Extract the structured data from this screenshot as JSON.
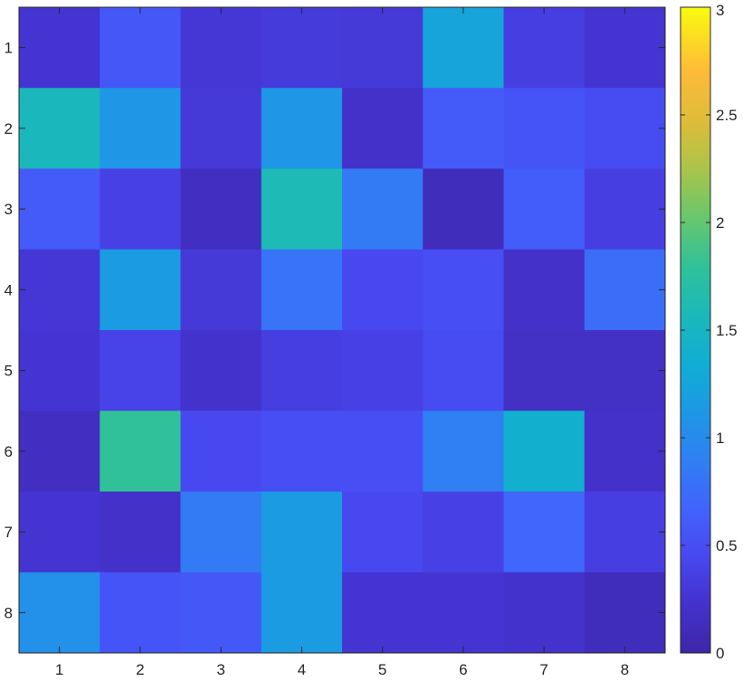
{
  "chart_data": {
    "type": "heatmap",
    "x_categories": [
      "1",
      "2",
      "3",
      "4",
      "5",
      "6",
      "7",
      "8"
    ],
    "y_categories": [
      "1",
      "2",
      "3",
      "4",
      "5",
      "6",
      "7",
      "8"
    ],
    "values": [
      [
        0.25,
        0.58,
        0.28,
        0.31,
        0.3,
        1.25,
        0.35,
        0.25
      ],
      [
        1.55,
        1.1,
        0.3,
        1.1,
        0.2,
        0.6,
        0.55,
        0.48
      ],
      [
        0.6,
        0.38,
        0.15,
        1.6,
        0.85,
        0.12,
        0.62,
        0.35
      ],
      [
        0.28,
        1.15,
        0.3,
        0.8,
        0.45,
        0.5,
        0.2,
        0.75
      ],
      [
        0.25,
        0.4,
        0.22,
        0.35,
        0.38,
        0.48,
        0.18,
        0.18
      ],
      [
        0.15,
        1.8,
        0.45,
        0.5,
        0.5,
        0.9,
        1.4,
        0.2
      ],
      [
        0.25,
        0.2,
        0.85,
        1.15,
        0.45,
        0.38,
        0.7,
        0.35
      ],
      [
        1.05,
        0.55,
        0.58,
        1.15,
        0.25,
        0.25,
        0.22,
        0.12
      ]
    ],
    "colorbar": {
      "min": 0,
      "max": 3,
      "ticks": [
        0,
        0.5,
        1,
        1.5,
        2,
        2.5,
        3
      ],
      "tick_labels": [
        "0",
        "0.5",
        "1",
        "1.5",
        "2",
        "2.5",
        "3"
      ],
      "colormap": "parula"
    },
    "grid": false,
    "colorbar_position": "right"
  }
}
